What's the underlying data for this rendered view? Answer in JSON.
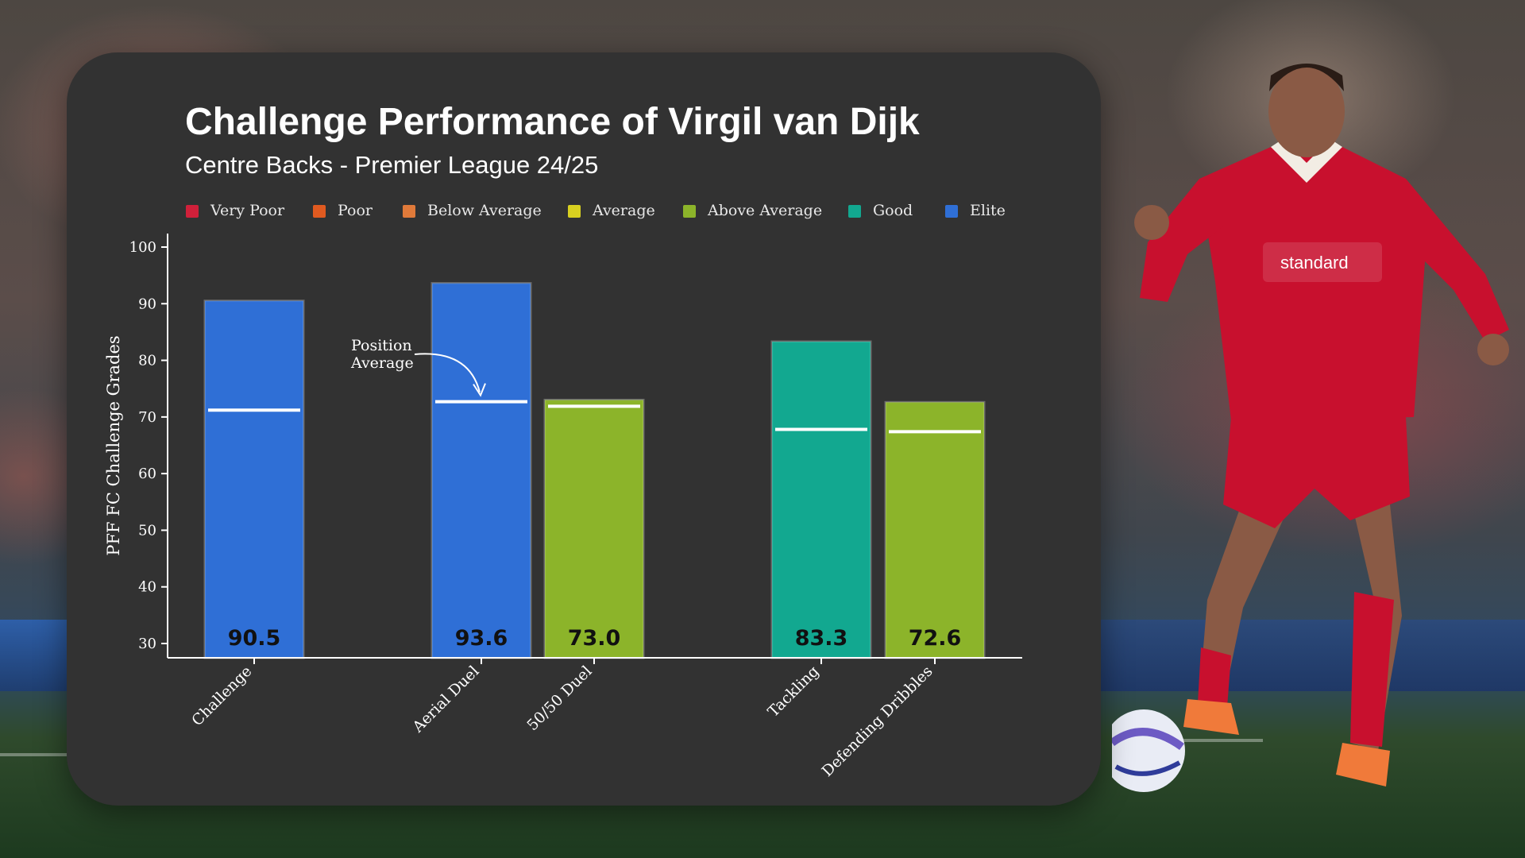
{
  "title": "Challenge Performance of Virgil van Dijk",
  "subtitle": "Centre Backs - Premier League 24/25",
  "legend": [
    {
      "label": "Very Poor",
      "color": "#d0203a"
    },
    {
      "label": "Poor",
      "color": "#e05a20"
    },
    {
      "label": "Below Average",
      "color": "#e07a3a"
    },
    {
      "label": "Average",
      "color": "#d8d020"
    },
    {
      "label": "Above Average",
      "color": "#8cb42a"
    },
    {
      "label": "Good",
      "color": "#12a890"
    },
    {
      "label": "Elite",
      "color": "#2f6fd6"
    }
  ],
  "chart_data": {
    "type": "bar",
    "title": "Challenge Performance of Virgil van Dijk",
    "subtitle": "Centre Backs - Premier League 24/25",
    "ylabel": "PFF FC Challenge Grades",
    "xlabel": "",
    "ylim": [
      30,
      100
    ],
    "yticks": [
      30,
      40,
      50,
      60,
      70,
      80,
      90,
      100
    ],
    "categories": [
      "Challenge",
      "Aerial Duel",
      "50/50 Duel",
      "Tackling",
      "Defending Dribbles"
    ],
    "values": [
      90.5,
      93.6,
      73.0,
      83.3,
      72.6
    ],
    "value_labels": [
      "90.5",
      "93.6",
      "73.0",
      "83.3",
      "72.6"
    ],
    "grade_bands": [
      "Elite",
      "Elite",
      "Above Average",
      "Good",
      "Above Average"
    ],
    "bar_colors": [
      "#2f6fd6",
      "#2f6fd6",
      "#8cb42a",
      "#12a890",
      "#8cb42a"
    ],
    "position_average": [
      71.2,
      72.7,
      71.9,
      67.8,
      67.4
    ],
    "annotation": {
      "line1": "Position",
      "line2": "Average",
      "target_category": "Aerial Duel"
    },
    "grid": false,
    "legend_placement": "top"
  }
}
